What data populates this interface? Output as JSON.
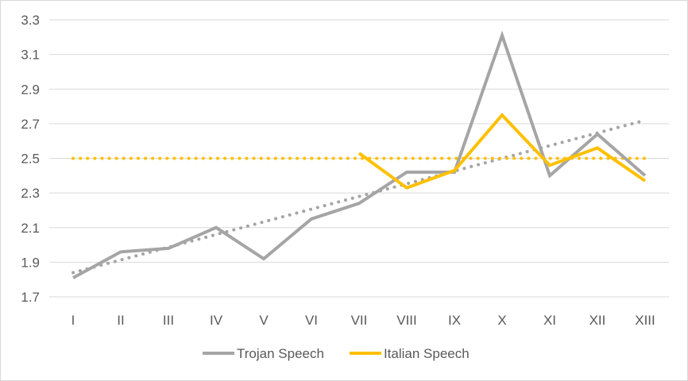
{
  "chart_data": {
    "type": "line",
    "title": "",
    "xlabel": "",
    "ylabel": "",
    "categories": [
      "I",
      "II",
      "III",
      "IV",
      "V",
      "VI",
      "VII",
      "VIII",
      "IX",
      "X",
      "XI",
      "XII",
      "XIII"
    ],
    "ylim": [
      1.7,
      3.3
    ],
    "yticks": [
      "1.7",
      "1.9",
      "2.1",
      "2.3",
      "2.5",
      "2.7",
      "2.9",
      "3.1",
      "3.3"
    ],
    "grid": true,
    "legend_position": "bottom",
    "series": [
      {
        "name": "Trojan Speech",
        "color": "#a5a5a5",
        "values": [
          1.81,
          1.96,
          1.98,
          2.1,
          1.92,
          2.15,
          2.24,
          2.42,
          2.42,
          3.21,
          2.4,
          2.64,
          2.4
        ]
      },
      {
        "name": "Italian Speech",
        "color": "#ffc000",
        "values": [
          null,
          null,
          null,
          null,
          null,
          null,
          2.53,
          2.33,
          2.43,
          2.75,
          2.46,
          2.56,
          2.37
        ]
      }
    ],
    "reference_lines": [
      {
        "kind": "trendline",
        "color": "#a5a5a5",
        "style": "dotted",
        "from": {
          "category": "I",
          "value": 1.84
        },
        "to": {
          "category": "XIII",
          "value": 2.72
        }
      },
      {
        "kind": "horizontal",
        "color": "#ffc000",
        "style": "dotted",
        "value": 2.5
      }
    ]
  }
}
